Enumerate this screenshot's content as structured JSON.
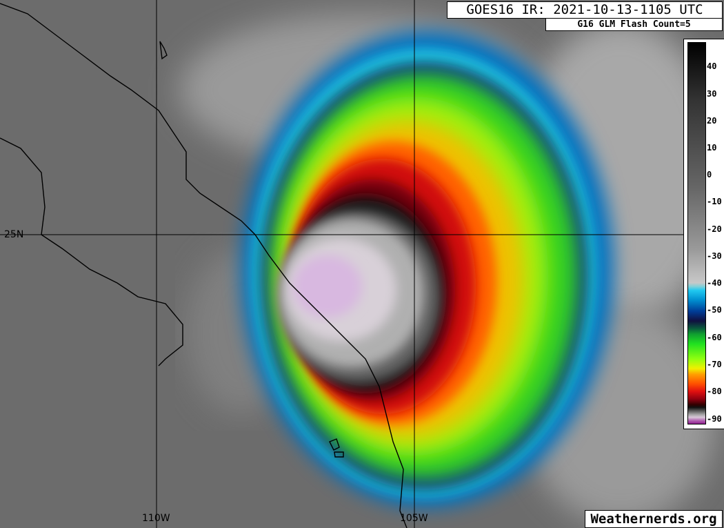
{
  "title": "GOES16 IR: 2021-10-13-1105 UTC",
  "subtitle": "G16 GLM Flash Count=5",
  "colorbar": {
    "ticks": [
      "40",
      "30",
      "20",
      "10",
      "0",
      "-10",
      "-20",
      "-30",
      "-40",
      "-50",
      "-60",
      "-70",
      "-80",
      "-90"
    ],
    "units_range": [
      48,
      -90
    ]
  },
  "grid_labels": {
    "lat_25n": "25N",
    "lon_110w": "110W",
    "lon_105w": "105W"
  },
  "brand": "Weathernerds.org",
  "colors": {
    "background_gray": "#6e6e6e",
    "cold_top": "#d0c0d8",
    "red_ring": "#c01010",
    "green_band": "#30e020"
  }
}
